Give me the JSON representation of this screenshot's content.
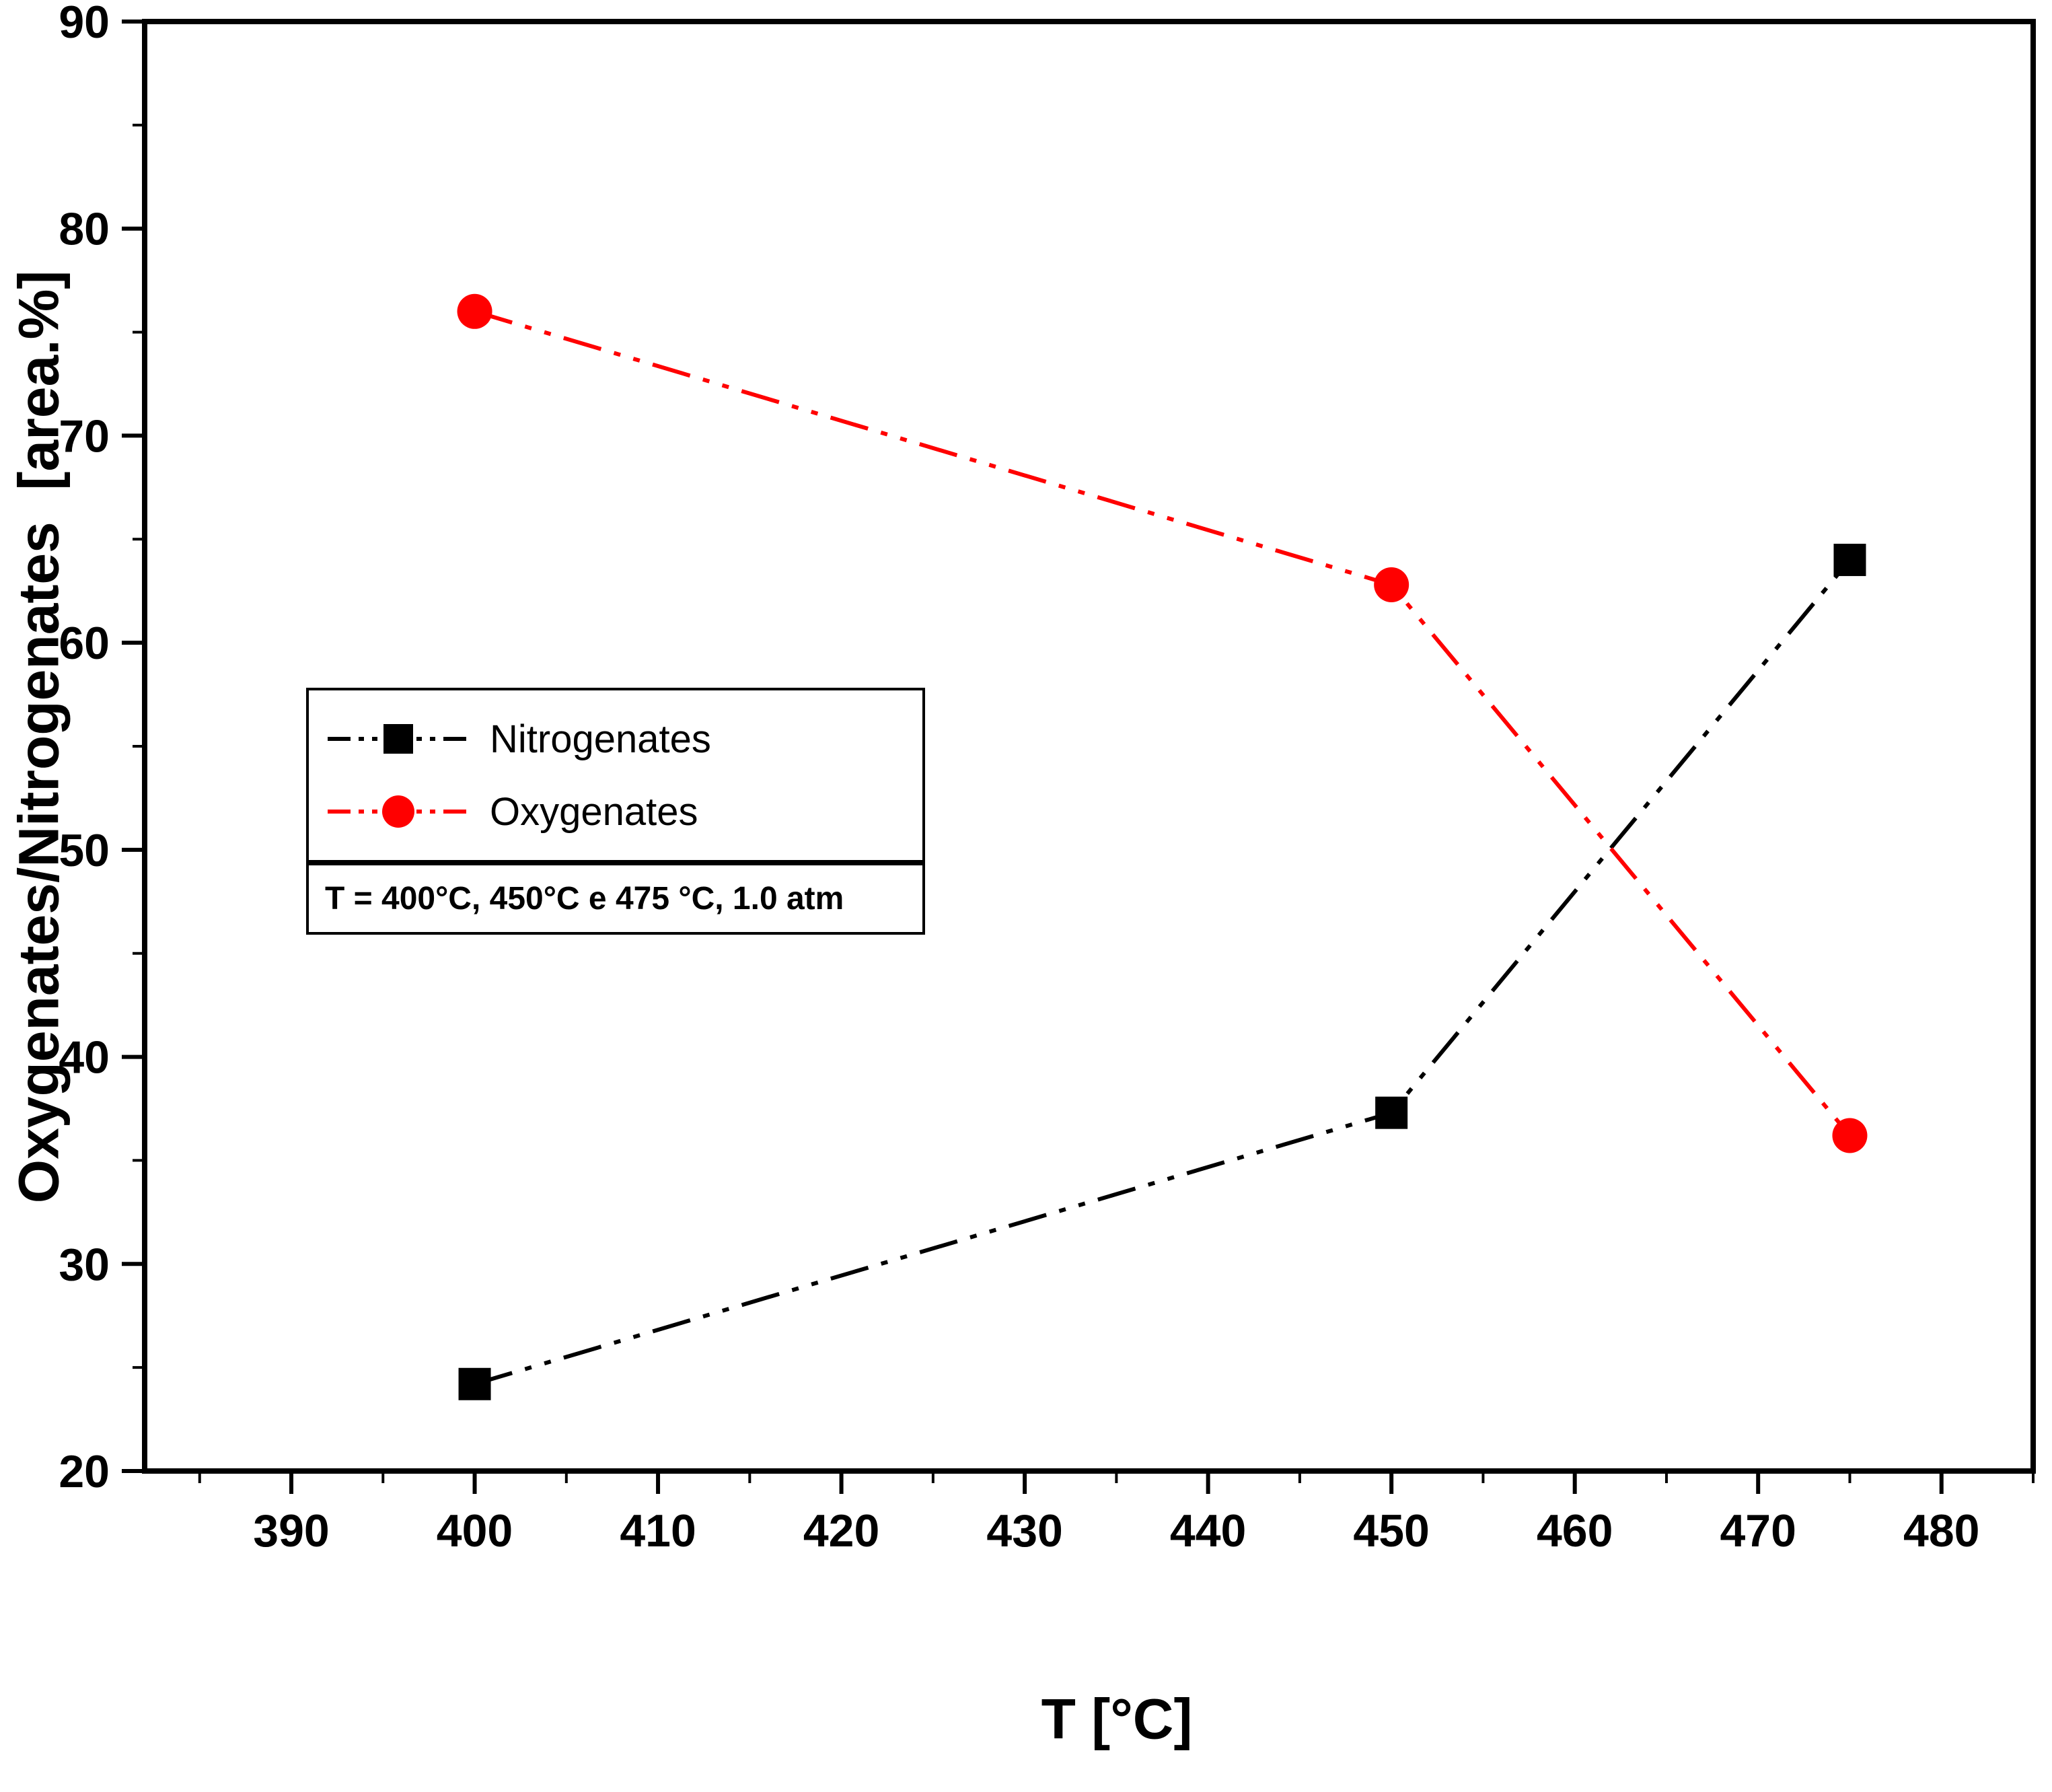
{
  "chart_data": {
    "type": "line",
    "title": "",
    "xlabel": "T [°C]",
    "ylabel": "Oxygenates/Nitrogenates  [area.%]",
    "xlim": [
      382,
      485
    ],
    "ylim": [
      20,
      90
    ],
    "x_ticks": [
      390,
      400,
      410,
      420,
      430,
      440,
      450,
      460,
      470,
      480
    ],
    "y_ticks": [
      20,
      30,
      40,
      50,
      60,
      70,
      80,
      90
    ],
    "minor_tick_step": 5,
    "x": [
      400,
      450,
      475
    ],
    "series": [
      {
        "name": "Nitrogenates",
        "color": "#000000",
        "marker": "square",
        "values": [
          24.2,
          37.3,
          64.0
        ]
      },
      {
        "name": "Oxygenates",
        "color": "#ff0000",
        "marker": "circle",
        "values": [
          76.0,
          62.8,
          36.2
        ]
      }
    ],
    "line_style": "dash-dot-dot",
    "grid": false,
    "legend_position": "upper-left-inside",
    "annotation": "T = 400°C, 450°C e 475 °C, 1.0 atm",
    "frame_color": "#000000",
    "background_color": "#ffffff"
  }
}
